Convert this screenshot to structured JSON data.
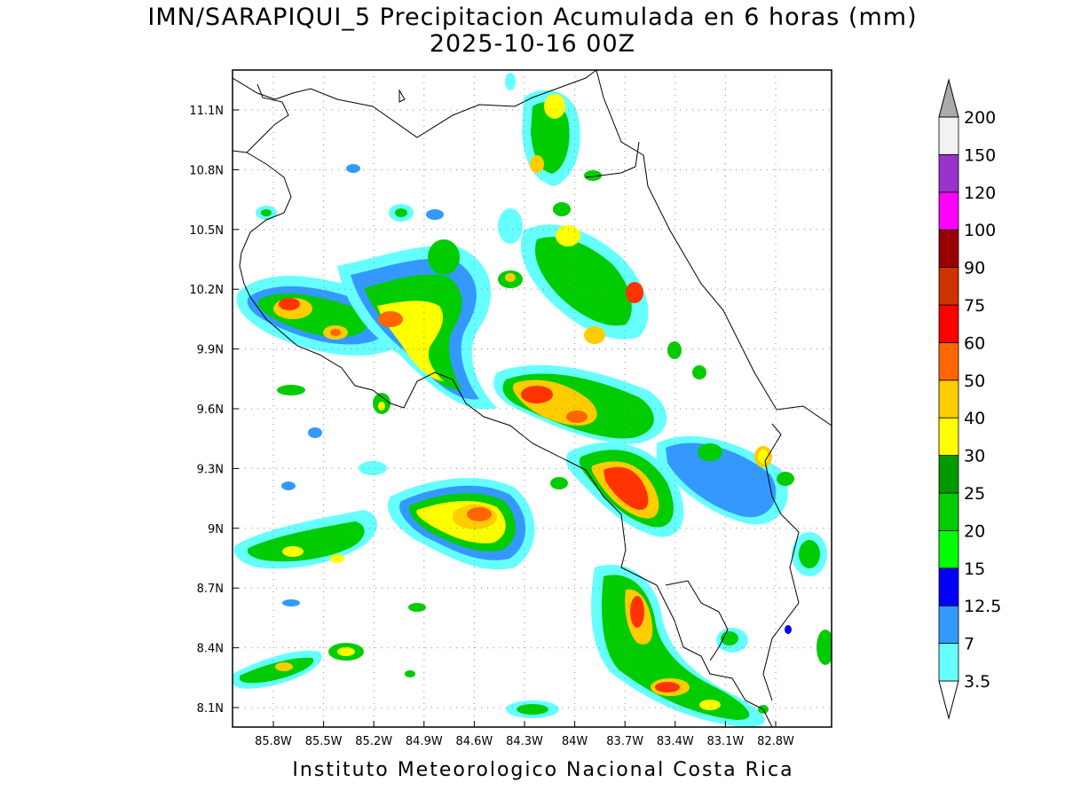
{
  "title_line1": "IMN/SARAPIQUI_5 Precipitacion Acumulada en 6 horas (mm)",
  "title_line2": "2025-10-16 00Z",
  "footer": "Instituto Meteorologico Nacional Costa Rica",
  "lon_ticks": [
    "85.8W",
    "85.5W",
    "85.2W",
    "84.9W",
    "84.6W",
    "84.3W",
    "84W",
    "83.7W",
    "83.4W",
    "83.1W",
    "82.8W"
  ],
  "lat_ticks": [
    "11.1N",
    "10.8N",
    "10.5N",
    "10.2N",
    "9.9N",
    "9.6N",
    "9.3N",
    "9N",
    "8.7N",
    "8.4N",
    "8.1N"
  ],
  "colorbar": {
    "levels": [
      "3.5",
      "7",
      "12.5",
      "15",
      "20",
      "25",
      "30",
      "40",
      "50",
      "60",
      "75",
      "90",
      "100",
      "120",
      "150",
      "200"
    ],
    "colors": [
      "#ffffff",
      "#66ffff",
      "#3399ff",
      "#0000ff",
      "#00ff00",
      "#00cc00",
      "#009900",
      "#ffff00",
      "#ffcc00",
      "#ff6600",
      "#ff0000",
      "#cc3300",
      "#990000",
      "#ff00ff",
      "#9933cc",
      "#f2f2f2",
      "#aaaaaa"
    ]
  }
}
